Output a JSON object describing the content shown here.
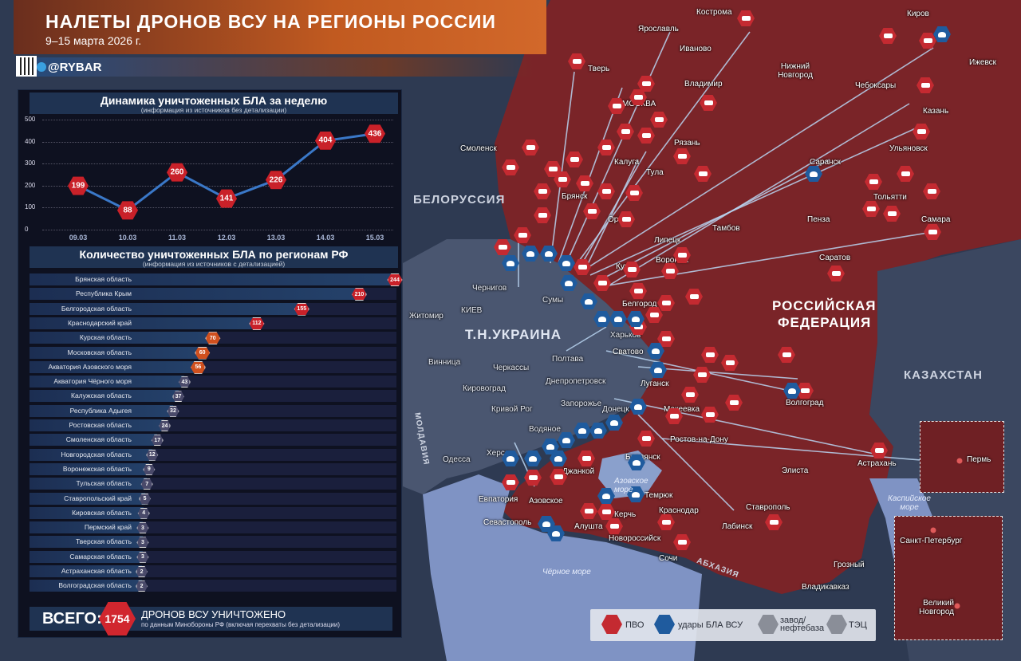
{
  "header": {
    "title": "НАЛЕТЫ ДРОНОВ ВСУ НА РЕГИОНЫ РОССИИ",
    "subtitle": "9–15 марта 2026 г.",
    "handle": "@RYBAR",
    "watermark": "RYBAR"
  },
  "colors": {
    "russia": "#7a2428",
    "ukraine": "#4a5670",
    "sea": "#7f93c4",
    "pvo": "#c42a31",
    "strike": "#1f5b9e",
    "header": "#c15a20"
  },
  "chart_data": [
    {
      "type": "line",
      "title": "Динамика уничтоженных БЛА за неделю",
      "subtitle": "(информация из источников без детализации)",
      "categories": [
        "09.03",
        "10.03",
        "11.03",
        "12.03",
        "13.03",
        "14.03",
        "15.03"
      ],
      "values": [
        199,
        88,
        260,
        141,
        226,
        404,
        436
      ],
      "yticks": [
        "0",
        "100",
        "200",
        "300",
        "400",
        "500"
      ],
      "ylim": [
        0,
        500
      ],
      "grid": true
    },
    {
      "type": "bar",
      "orientation": "horizontal",
      "title": "Количество уничтоженных БЛА по регионам РФ",
      "subtitle": "(информация из источников с детализацией)",
      "categories": [
        "Брянская область",
        "Республика Крым",
        "Белгородская область",
        "Краснодарский край",
        "Курская область",
        "Московская область",
        "Акватория Азовского моря",
        "Акватория Чёрного моря",
        "Калужская область",
        "Республика Адыгея",
        "Ростовская область",
        "Смоленская область",
        "Новгородская область",
        "Воронежская область",
        "Тульская область",
        "Ставропольский край",
        "Кировская область",
        "Пермский край",
        "Тверская область",
        "Самарская область",
        "Астраханская область",
        "Волгоградская область"
      ],
      "values": [
        244,
        210,
        155,
        112,
        70,
        60,
        56,
        43,
        37,
        32,
        24,
        17,
        12,
        9,
        7,
        5,
        4,
        3,
        3,
        3,
        2,
        2
      ]
    }
  ],
  "total": {
    "label": "ВСЕГО:",
    "value": "1754",
    "text": "ДРОНОВ ВСУ УНИЧТОЖЕНО",
    "note": "по данным Минобороны РФ (включая перехваты без детализации)"
  },
  "legend": {
    "pvo": "ПВО",
    "strike": "удары БЛА ВСУ",
    "factory": "завод/ нефтебаза",
    "tpp": "ТЭЦ"
  },
  "countries": {
    "belarus": "БЕЛОРУССИЯ",
    "ukraine": "Т.Н.УКРАИНА",
    "russia1": "РОССИЙСКАЯ",
    "russia2": "ФЕДЕРАЦИЯ",
    "kazakhstan": "КАЗАХСТАН",
    "moldova": "МОЛДАВИЯ",
    "abkhazia": "АБХАЗИЯ"
  },
  "seas": {
    "black": "Чёрное море",
    "azov": "Азовское море",
    "caspian": "Каспийское море"
  },
  "cities": {
    "kostroma": "Кострома",
    "yaroslavl": "Ярославль",
    "kirov": "Киров",
    "izhevsk": "Ижевск",
    "ivanovo": "Иваново",
    "tver": "Тверь",
    "nnovgorod": "Нижний Новгород",
    "cheboksary": "Чебоксары",
    "vladimir": "Владимир",
    "moscow": "МОСКВА",
    "kazan": "Казань",
    "smolensk": "Смоленск",
    "kaluga": "Калуга",
    "ryazan": "Рязань",
    "tula": "Тула",
    "ulyanovsk": "Ульяновск",
    "saransk": "Саранск",
    "bryansk": "Брянск",
    "tolyatti": "Тольятти",
    "orel": "Орёл",
    "penza": "Пенза",
    "samara": "Самара",
    "lipetsk": "Липецк",
    "tambov": "Тамбов",
    "kursk": "Курск",
    "voronezh": "Воронеж",
    "saratov": "Саратов",
    "belgorod": "Белгород",
    "svatovo": "Сватово",
    "lugansk": "Луганск",
    "volgograd": "Волгоград",
    "makeevka": "Макеевка",
    "rostov": "Ростов-на-Дону",
    "berdyansk": "Бердянск",
    "astrakhan": "Астрахань",
    "elista": "Элиста",
    "temryuk": "Темрюк",
    "krasnodar": "Краснодар",
    "stavropol": "Ставрополь",
    "labinsk": "Лабинск",
    "novorossiysk": "Новороссийск",
    "sochi": "Сочи",
    "grozny": "Грозный",
    "vladikavkaz": "Владикавказ",
    "dzhankoy": "Джанкой",
    "azovskoe": "Азовское",
    "evpatoria": "Евпатория",
    "sevastopol": "Севастополь",
    "alushta": "Алушта",
    "kerch": "Керчь",
    "chernigov": "Чернигов",
    "kiev": "КИЕВ",
    "zhitomir": "Житомир",
    "sumy": "Сумы",
    "kharkov": "Харьков",
    "poltava": "Полтава",
    "vinnitsa": "Винница",
    "cherkassy": "Черкассы",
    "dnepr": "Днепропетровск",
    "kirovograd": "Кировоград",
    "krivoyrog": "Кривой Рог",
    "zaporozhye": "Запорожье",
    "donetsk": "Донецк",
    "vodyanoe": "Водяное",
    "kherson": "Херсон",
    "odessa": "Одесса",
    "perm": "Пермь",
    "spb": "Санкт-Петербург",
    "vnovgorod": "Великий Новгород"
  }
}
